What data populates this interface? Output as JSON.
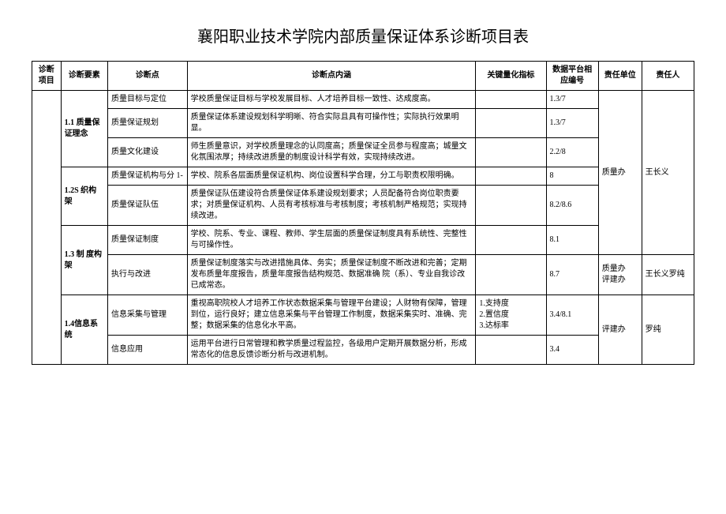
{
  "title": "襄阳职业技术学院内部质量保证体系诊断项目表",
  "headers": {
    "xiangmu": "诊断项目",
    "yaosu": "诊断要素",
    "dian": "诊断点",
    "neihan": "诊断点内涵",
    "zhibiao": "关键量化指标",
    "bianhao": "数据平台相应编号",
    "danwei": "责任单位",
    "zeren": "责任人"
  },
  "yaosu": {
    "y1": "1.1 质量保证理念",
    "y2": "1.2S 织构架",
    "y3": "1.3 制 度构架",
    "y4": "1.4信息系统"
  },
  "rows": {
    "r1": {
      "dian": "质量目标与定位",
      "neihan": "学校质量保证目标与学校发展目标、人才培养目标一致性、达成度高。",
      "zhibiao": "",
      "bianhao": "1.3/7"
    },
    "r2": {
      "dian": "质量保证规划",
      "neihan": "质量保证体系建设规划科学明晰、符合实际且具有可操作性；实际执行效果明显。",
      "zhibiao": "",
      "bianhao": "1.3/7"
    },
    "r3": {
      "dian": "质量文化建设",
      "neihan": "师生质量意识，对学校质量理念的认同度高；质量保证全员参与程度高；城量文化氛围浓厚；持续改进质量的制度设计科学有效，实现持续改进。",
      "zhibiao": "",
      "bianhao": "2.2/8"
    },
    "r4": {
      "dian": "质量保证机构与分 1-",
      "neihan": "学校、院系各层面质量保证机构、岗位设置科学合理，分工与职责权限明确。",
      "zhibiao": "",
      "bianhao": "8"
    },
    "r5": {
      "dian": "质量保证队伍",
      "neihan": "质量保证队伍建设符合质量保证体系建设规划要求；人员配备符合岗位职责要求；对质量保证机构、人员有考核标准与考核制度；考核机制严格规范；实现持续改进。",
      "zhibiao": "",
      "bianhao": "8.2/8.6"
    },
    "r6": {
      "dian": "质量保证制度",
      "neihan": "学校、院系、专业、课程、教师、学生层面的质量保证制度具有系统性、完整性与可操作性。",
      "zhibiao": "",
      "bianhao": "8.1"
    },
    "r7": {
      "dian": "执行与改进",
      "neihan": "质量保证制度落实与改进措施具体、务实；质量保证制度不断改进和完善；定期发布质量年度报告，质量年度报告结构规范、数据准确  院（系）、专业自我诊改已成常态。",
      "zhibiao": "",
      "bianhao": "8.7"
    },
    "r8": {
      "dian": "信息采集与管理",
      "neihan": "重视高职院校人才培养工作状态数据采集与管理平台建设；人财物有保障，管理到位，运行良好；建立信息采集与平台管理工作制度，数据采集实时、准确、完整；数据采集的信息化水平高。",
      "zhibiao": "1.支持度\n2.置信度\n3.达标率",
      "bianhao": "3.4/8.1"
    },
    "r9": {
      "dian": "信息应用",
      "neihan": "运用平台进行日常管理和教学质量过程监控，各级用户定期开展数据分析，形成常态化的信息反馈诊断分析与改进机制。",
      "zhibiao": "",
      "bianhao": "3.4"
    }
  },
  "danwei": {
    "d1": "质量办",
    "d2": "质量办\n评建办",
    "d3": "评建办"
  },
  "zeren": {
    "z1": "王长义",
    "z2": "王长义罗纯",
    "z3": "罗纯"
  }
}
